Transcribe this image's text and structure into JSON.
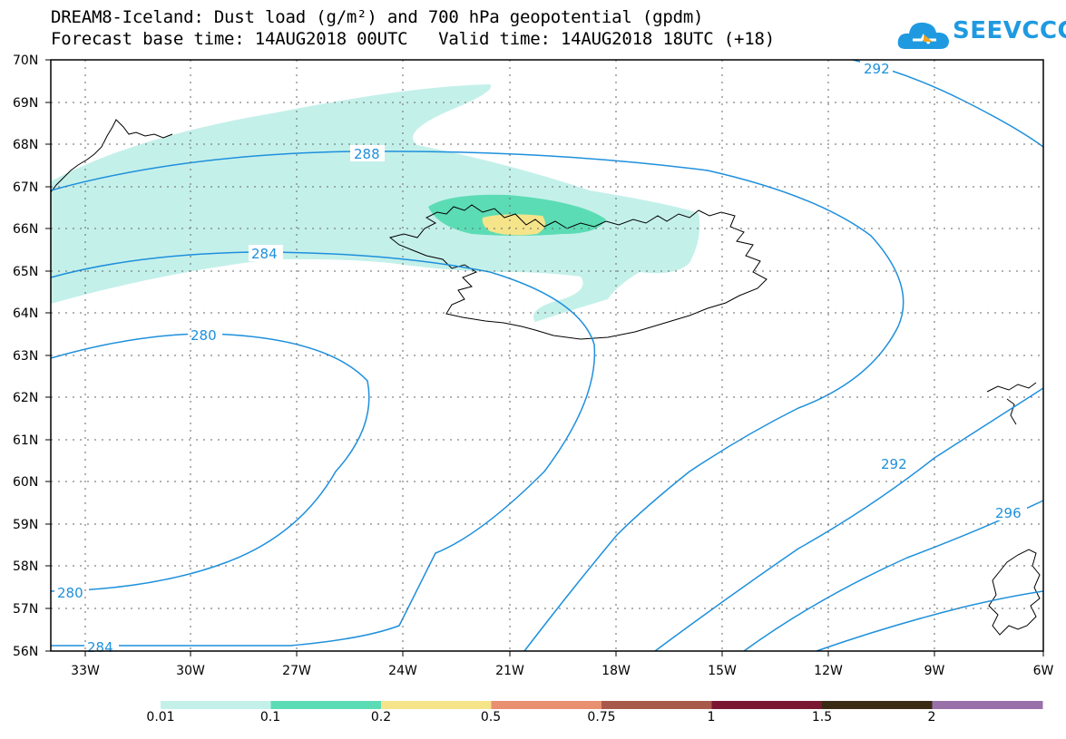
{
  "title_line1": "DREAM8-Iceland: Dust load (g/m²) and 700 hPa geopotential (gpdm)",
  "title_line2": "Forecast base time: 14AUG2018 00UTC   Valid time: 14AUG2018 18UTC (+18)",
  "logo_text": "SEEVCCC",
  "map": {
    "lat_labels": [
      "70N",
      "69N",
      "68N",
      "67N",
      "66N",
      "65N",
      "64N",
      "63N",
      "62N",
      "61N",
      "60N",
      "59N",
      "58N",
      "57N",
      "56N"
    ],
    "lon_labels": [
      "33W",
      "30W",
      "27W",
      "24W",
      "21W",
      "18W",
      "15W",
      "12W",
      "9W",
      "6W"
    ],
    "contour_labels": [
      "292",
      "288",
      "284",
      "280",
      "280",
      "284",
      "292",
      "296"
    ],
    "gridlines": true
  },
  "colorbar": {
    "labels": [
      "0.01",
      "0.1",
      "0.2",
      "0.5",
      "0.75",
      "1",
      "1.5",
      "2"
    ],
    "colors": [
      "#c4f0ea",
      "#5cdcb4",
      "#f5e48a",
      "#e89070",
      "#a85a4a",
      "#7a1834",
      "#3a2a14",
      "#9a70a8"
    ]
  },
  "contour_color": "#1e90dc",
  "dust_colors": {
    "low": "#c4f0ea",
    "mid": "#5cdcb4",
    "high": "#f5e48a"
  }
}
